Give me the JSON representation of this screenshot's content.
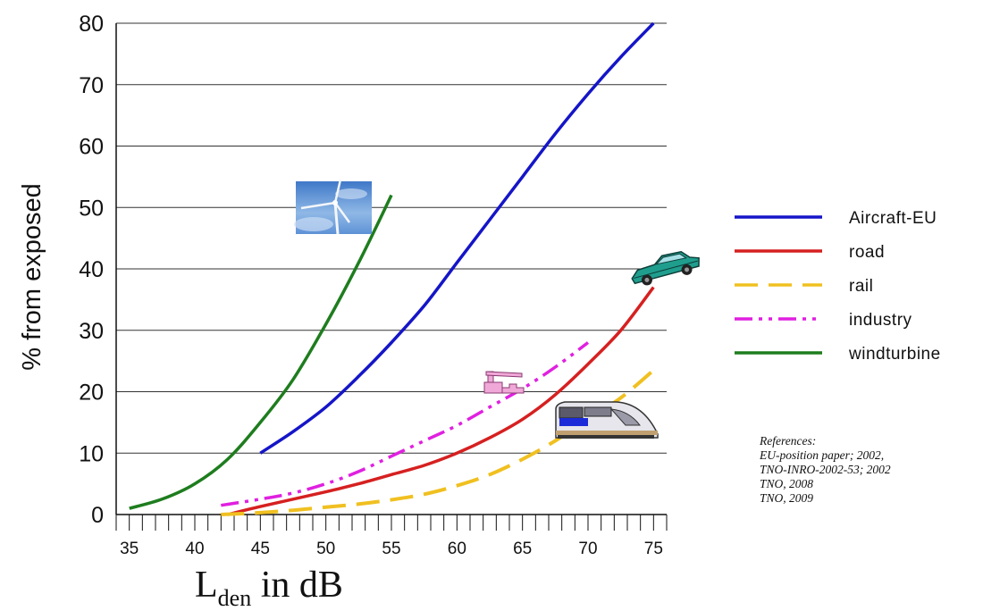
{
  "chart_data": {
    "type": "line",
    "title": "",
    "xlabel_main": "L",
    "xlabel_sub": "den",
    "xlabel_rest": " in dB",
    "ylabel": "% from exposed",
    "xlim": [
      34,
      76
    ],
    "ylim": [
      0,
      80
    ],
    "x_ticks": [
      35,
      40,
      45,
      50,
      55,
      60,
      65,
      70,
      75
    ],
    "y_ticks": [
      0,
      10,
      20,
      30,
      40,
      50,
      60,
      70,
      80
    ],
    "grid": "horizontal",
    "legend_position": "right",
    "series": [
      {
        "name": "Aircraft-EU",
        "color": "#1515c8",
        "style": "solid",
        "x": [
          45,
          47.5,
          50,
          52.5,
          55,
          57.5,
          60,
          62.5,
          65,
          67.5,
          70,
          72.5,
          75
        ],
        "y": [
          10,
          13.5,
          17.5,
          22.5,
          28,
          34,
          41,
          48,
          55,
          62,
          68.5,
          74.5,
          80
        ]
      },
      {
        "name": "road",
        "color": "#d62020",
        "style": "solid",
        "x": [
          42.5,
          45,
          47.5,
          50,
          52.5,
          55,
          57.5,
          60,
          62.5,
          65,
          67.5,
          70,
          72.5,
          75
        ],
        "y": [
          0,
          1.3,
          2.5,
          3.7,
          5,
          6.5,
          8,
          10,
          12.5,
          15.5,
          19.5,
          24.5,
          30,
          37
        ]
      },
      {
        "name": "rail",
        "color": "#f0c020",
        "style": "dashed",
        "x": [
          42,
          45,
          47.5,
          50,
          52.5,
          55,
          57.5,
          60,
          62.5,
          65,
          67.5,
          70,
          72.5,
          75
        ],
        "y": [
          0,
          0.3,
          0.7,
          1.2,
          1.7,
          2.4,
          3.3,
          4.7,
          6.5,
          9,
          12,
          15.5,
          19,
          23.5
        ]
      },
      {
        "name": "industry",
        "color": "#e020e0",
        "style": "dashdotdot",
        "x": [
          42,
          45,
          47.5,
          50,
          52.5,
          55,
          57.5,
          60,
          62.5,
          65,
          67.5,
          70
        ],
        "y": [
          1.5,
          2.5,
          3.5,
          5,
          7,
          9.5,
          12,
          14.5,
          17.5,
          20.5,
          24,
          28
        ]
      },
      {
        "name": "windturbine",
        "color": "#1e7d1e",
        "style": "solid",
        "x": [
          35,
          37.5,
          40,
          42.5,
          45,
          47.5,
          50,
          52.5,
          55
        ],
        "y": [
          1,
          2.5,
          5,
          9,
          15,
          22,
          31,
          41,
          52
        ]
      }
    ]
  },
  "legend": {
    "items": [
      {
        "label": "Aircraft-EU",
        "color": "#1515c8",
        "style": "solid"
      },
      {
        "label": "road",
        "color": "#d62020",
        "style": "solid"
      },
      {
        "label": "rail",
        "color": "#f0c020",
        "style": "dashed"
      },
      {
        "label": "industry",
        "color": "#e020e0",
        "style": "dashdotdot"
      },
      {
        "label": "windturbine",
        "color": "#1e7d1e",
        "style": "solid"
      }
    ]
  },
  "references": {
    "heading": "References:",
    "lines": [
      "EU-position paper; 2002,",
      "TNO-INRO-2002-53; 2002",
      "TNO, 2008",
      "TNO, 2009"
    ]
  },
  "icons": {
    "windturbine": "windturbine-photo-icon",
    "car": "car-icon",
    "factory": "factory-icon",
    "train": "train-icon"
  }
}
